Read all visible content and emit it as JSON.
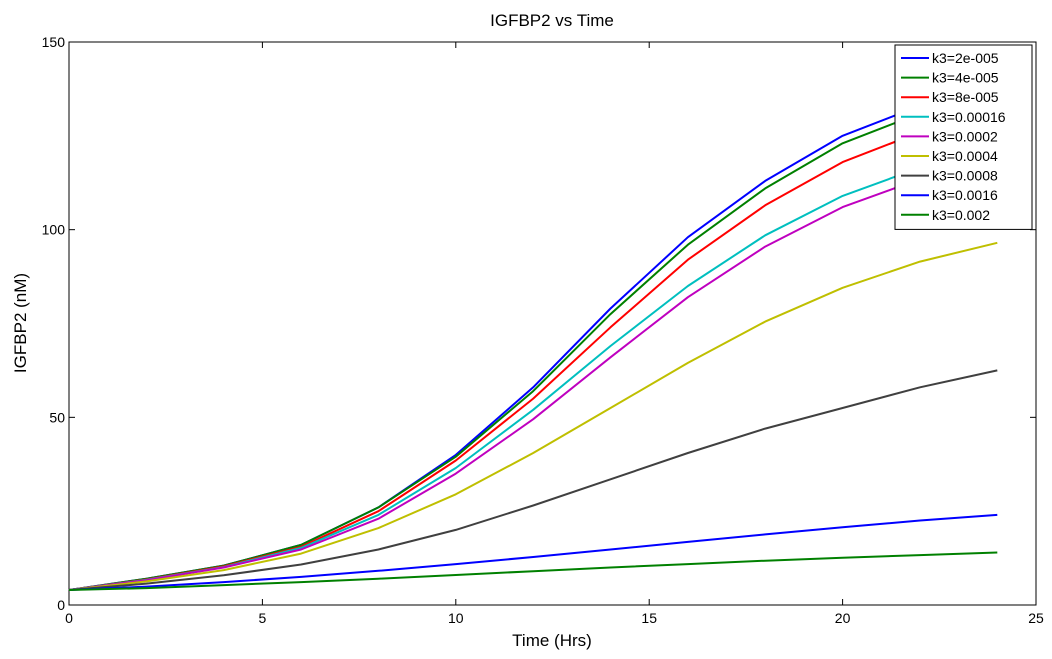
{
  "chart_data": {
    "type": "line",
    "title": "IGFBP2 vs Time",
    "xlabel": "Time (Hrs)",
    "ylabel": "IGFBP2 (nM)",
    "xlim": [
      0,
      25
    ],
    "ylim": [
      0,
      150
    ],
    "xticks": [
      0,
      5,
      10,
      15,
      20,
      25
    ],
    "yticks": [
      0,
      50,
      100,
      150
    ],
    "grid": false,
    "legend_position": "top-right",
    "x": [
      0,
      2,
      4,
      6,
      8,
      10,
      12,
      14,
      16,
      18,
      20,
      22,
      24
    ],
    "series": [
      {
        "name": "k3=2e-005",
        "color": "#0000ff",
        "values": [
          4,
          7,
          10.5,
          16,
          26,
          40,
          58,
          79,
          98,
          113,
          125,
          133,
          139
        ]
      },
      {
        "name": "k3=4e-005",
        "color": "#008000",
        "values": [
          4,
          7,
          10.5,
          16,
          26,
          39.5,
          57,
          77.5,
          96,
          111,
          123,
          131,
          136
        ]
      },
      {
        "name": "k3=8e-005",
        "color": "#ff0000",
        "values": [
          4,
          6.8,
          10.3,
          15.5,
          25,
          38.5,
          55,
          74,
          92,
          106.5,
          118,
          126,
          131
        ]
      },
      {
        "name": "k3=0.00016",
        "color": "#00bfbf",
        "values": [
          4,
          6.7,
          10.1,
          15.2,
          24,
          36.5,
          52,
          69,
          85,
          98.5,
          109,
          116.5,
          121
        ]
      },
      {
        "name": "k3=0.0002",
        "color": "#bf00bf",
        "values": [
          4,
          6.6,
          10,
          14.8,
          23,
          35,
          49.5,
          66,
          82,
          95.5,
          106,
          113.5,
          118
        ]
      },
      {
        "name": "k3=0.0004",
        "color": "#bfbf00",
        "values": [
          4,
          6.3,
          9.3,
          13.7,
          20.5,
          29.5,
          40.5,
          52.5,
          64.5,
          75.5,
          84.5,
          91.5,
          96.5
        ]
      },
      {
        "name": "k3=0.0008",
        "color": "#404040",
        "values": [
          4,
          5.7,
          7.9,
          10.8,
          14.8,
          20,
          26.5,
          33.5,
          40.5,
          47,
          52.5,
          58,
          62.5
        ]
      },
      {
        "name": "k3=0.0016",
        "color": "#0000ff",
        "values": [
          4,
          4.9,
          6.1,
          7.5,
          9.1,
          10.9,
          12.8,
          14.8,
          16.8,
          18.8,
          20.7,
          22.5,
          24
        ]
      },
      {
        "name": "k3=0.002",
        "color": "#008000",
        "values": [
          4,
          4.5,
          5.3,
          6.1,
          7,
          8,
          9,
          10,
          10.9,
          11.8,
          12.6,
          13.3,
          14
        ]
      }
    ]
  }
}
